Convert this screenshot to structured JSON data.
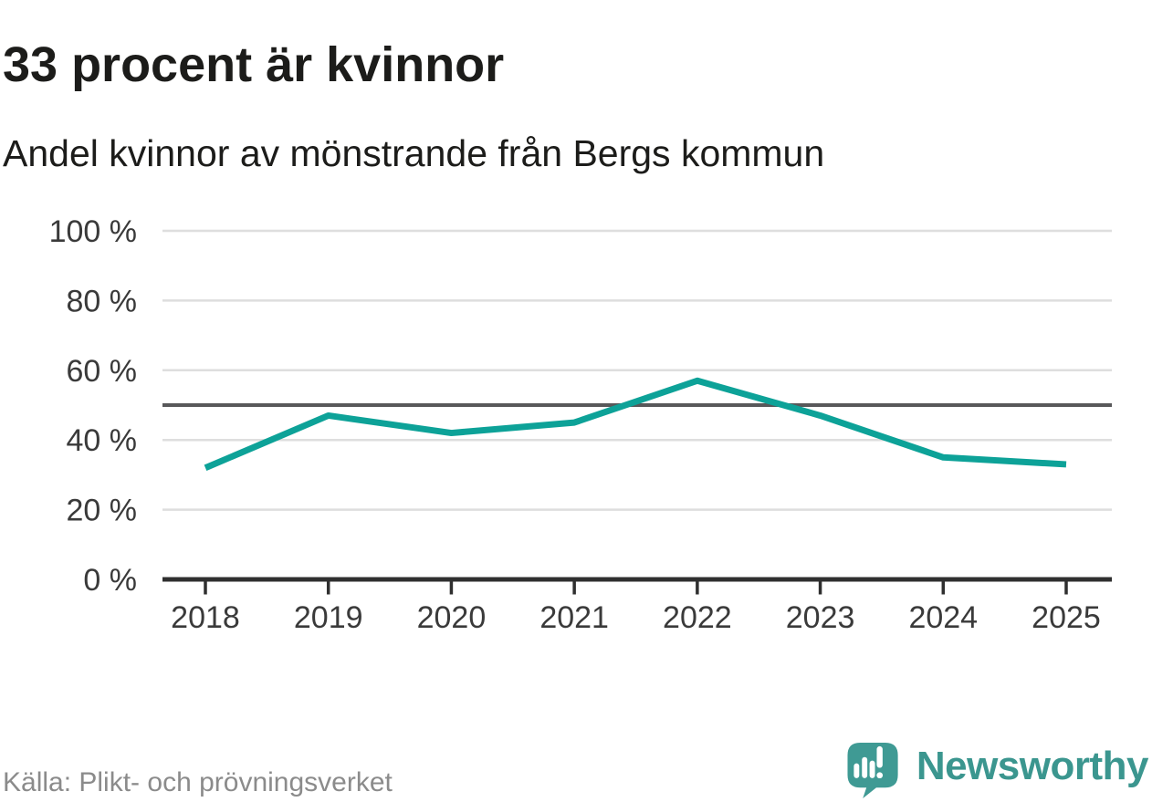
{
  "header": {
    "title": "33 procent är kvinnor",
    "subtitle": "Andel kvinnor av mönstrande från Bergs kommun"
  },
  "chart_data": {
    "type": "line",
    "title": "33 procent är kvinnor",
    "subtitle": "Andel kvinnor av mönstrande från Bergs kommun",
    "categories": [
      "2018",
      "2019",
      "2020",
      "2021",
      "2022",
      "2023",
      "2024",
      "2025"
    ],
    "series": [
      {
        "name": "andel-kvinnor",
        "values": [
          32,
          47,
          42,
          45,
          57,
          47,
          35,
          33
        ]
      }
    ],
    "unit": "%",
    "ylim": [
      0,
      100
    ],
    "yticks": [
      0,
      20,
      40,
      60,
      80,
      100
    ],
    "ytick_suffix": " %",
    "reference_line": 50,
    "grid": true,
    "legend": "none",
    "colors": {
      "line": "#0da298",
      "reference": "#58585a",
      "grid": "#dedede",
      "axis": "#2f2f2f",
      "tick_label": "#3a3a3a"
    }
  },
  "footer": {
    "source": "Källa: Plikt- och prövningsverket",
    "brand_name": "Newsworthy",
    "brand_color": "#3b968f",
    "logo_icon": "newsworthy-speech-bubble-bar-chart-icon",
    "logo_color": "#3f9a94"
  }
}
